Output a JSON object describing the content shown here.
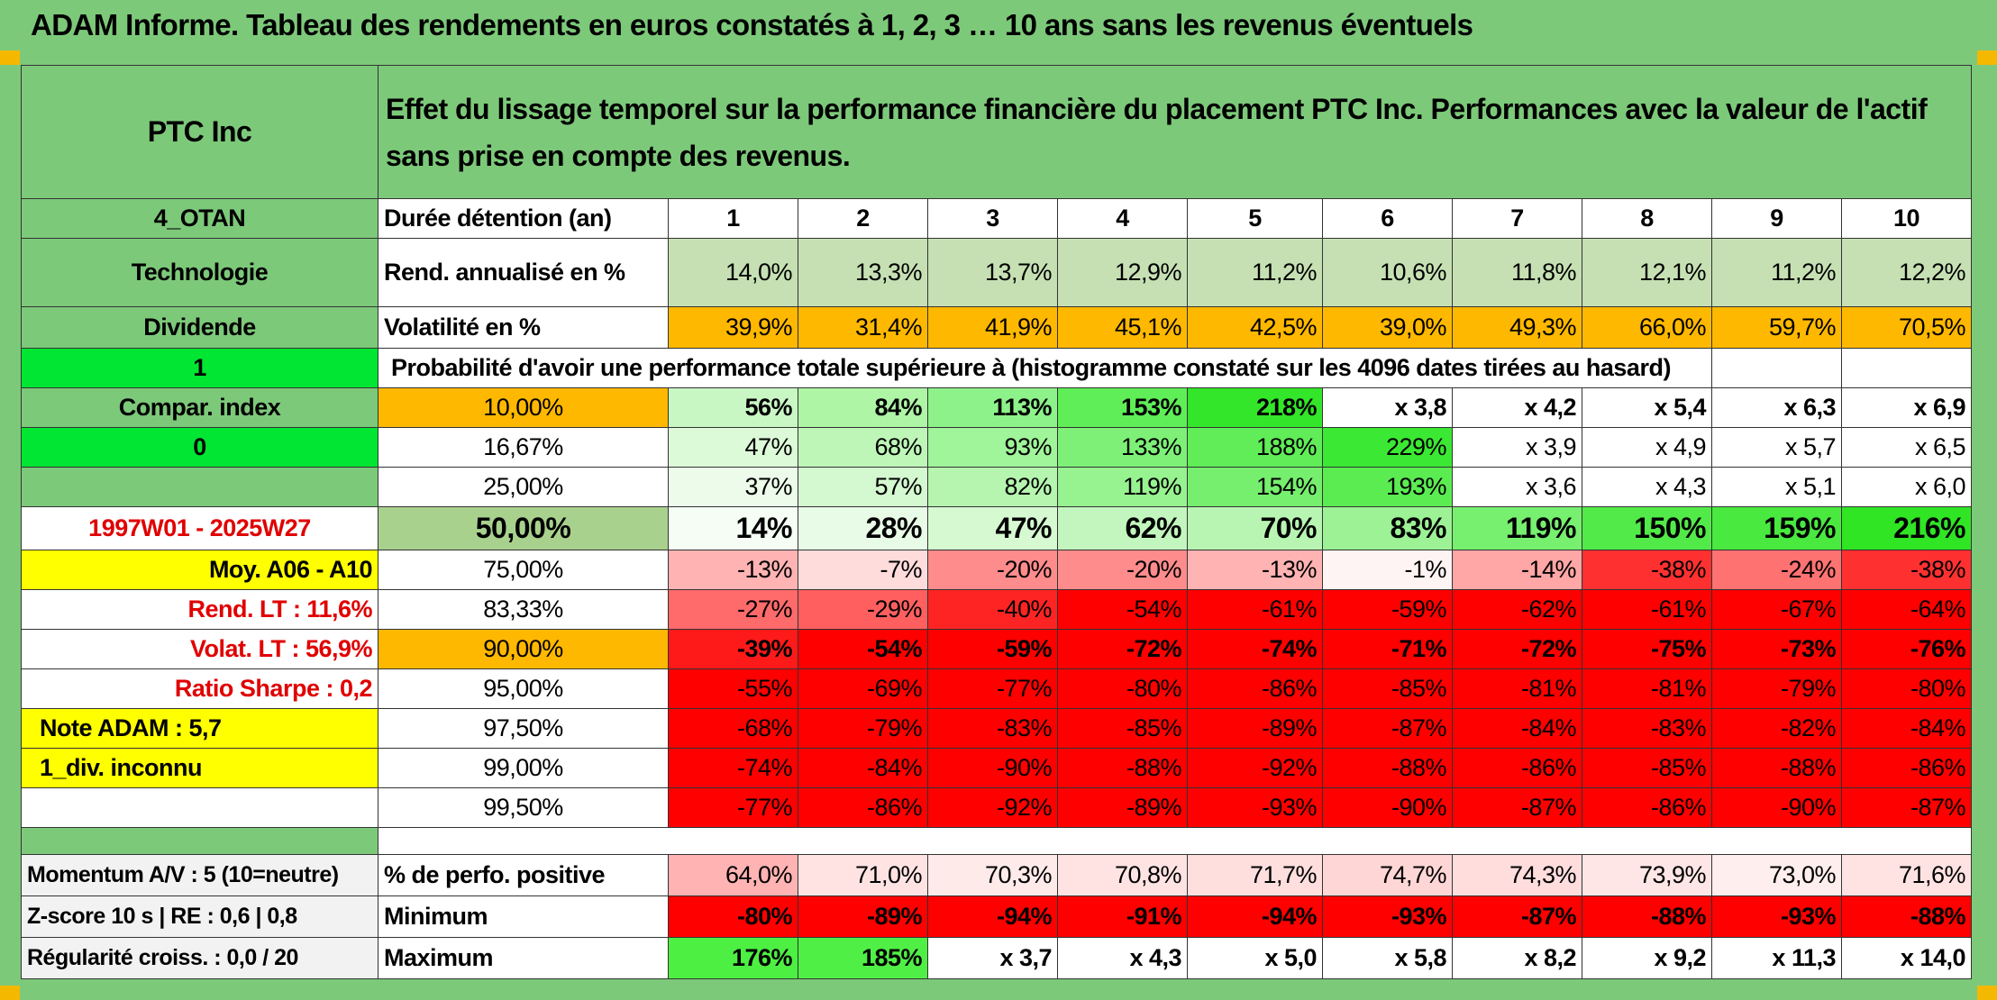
{
  "title": "ADAM Informe. Tableau des rendements en euros constatés à 1, 2, 3 … 10 ans sans les revenus éventuels",
  "colors": {
    "green_label": "#7dc97a",
    "bright_green": "#00e633",
    "yellow": "#ffff00",
    "orange": "#ffb800",
    "red": "#ff0000"
  },
  "side": {
    "name": "PTC Inc",
    "code": "4_OTAN",
    "sector": "Technologie",
    "dividend": "Dividende",
    "flag1": "1",
    "compar": "Compar. index",
    "flag0": "0",
    "period": "1997W01 - 2025W27",
    "moy": "Moy. A06 - A10",
    "rend_lt": "Rend. LT :   11,6%",
    "volat_lt": "Volat. LT :   56,9%",
    "sharpe": "Ratio Sharpe :   0,2",
    "note": "Note ADAM : 5,7",
    "div_unknown": "1_div. inconnu",
    "momentum": "Momentum A/V : 5 (10=neutre)",
    "zscore": "Z-score 10 s | RE : 0,6 | 0,8",
    "regularite": "Régularité croiss. : 0,0 / 20"
  },
  "header_text": "Effet du lissage temporel sur la performance financière du placement PTC Inc. Performances avec la valeur de l'actif sans prise en compte des revenus.",
  "rows": {
    "duree": {
      "label": "Durée détention (an)",
      "values": [
        "1",
        "2",
        "3",
        "4",
        "5",
        "6",
        "7",
        "8",
        "9",
        "10"
      ]
    },
    "rend": {
      "label": "Rend. annualisé en %",
      "values": [
        "14,0%",
        "13,3%",
        "13,7%",
        "12,9%",
        "11,2%",
        "10,6%",
        "11,8%",
        "12,1%",
        "11,2%",
        "12,2%"
      ]
    },
    "volat": {
      "label": "Volatilité en %",
      "values": [
        "39,9%",
        "31,4%",
        "41,9%",
        "45,1%",
        "42,5%",
        "39,0%",
        "49,3%",
        "66,0%",
        "59,7%",
        "70,5%"
      ]
    },
    "proba_title": "Probabilité d'avoir une performance totale supérieure à (histogramme constaté sur les 4096 dates tirées au hasard)"
  },
  "quantiles": [
    {
      "q": "10,00%",
      "values": [
        "56%",
        "84%",
        "113%",
        "153%",
        "218%",
        "x 3,8",
        "x 4,2",
        "x 5,4",
        "x 6,3",
        "x 6,9"
      ]
    },
    {
      "q": "16,67%",
      "values": [
        "47%",
        "68%",
        "93%",
        "133%",
        "188%",
        "229%",
        "x 3,9",
        "x 4,9",
        "x 5,7",
        "x 6,5"
      ]
    },
    {
      "q": "25,00%",
      "values": [
        "37%",
        "57%",
        "82%",
        "119%",
        "154%",
        "193%",
        "x 3,6",
        "x 4,3",
        "x 5,1",
        "x 6,0"
      ]
    },
    {
      "q": "50,00%",
      "values": [
        "14%",
        "28%",
        "47%",
        "62%",
        "70%",
        "83%",
        "119%",
        "150%",
        "159%",
        "216%"
      ]
    },
    {
      "q": "75,00%",
      "values": [
        "-13%",
        "-7%",
        "-20%",
        "-20%",
        "-13%",
        "-1%",
        "-14%",
        "-38%",
        "-24%",
        "-38%"
      ]
    },
    {
      "q": "83,33%",
      "values": [
        "-27%",
        "-29%",
        "-40%",
        "-54%",
        "-61%",
        "-59%",
        "-62%",
        "-61%",
        "-67%",
        "-64%"
      ]
    },
    {
      "q": "90,00%",
      "values": [
        "-39%",
        "-54%",
        "-59%",
        "-72%",
        "-74%",
        "-71%",
        "-72%",
        "-75%",
        "-73%",
        "-76%"
      ]
    },
    {
      "q": "95,00%",
      "values": [
        "-55%",
        "-69%",
        "-77%",
        "-80%",
        "-86%",
        "-85%",
        "-81%",
        "-81%",
        "-79%",
        "-80%"
      ]
    },
    {
      "q": "97,50%",
      "values": [
        "-68%",
        "-79%",
        "-83%",
        "-85%",
        "-89%",
        "-87%",
        "-84%",
        "-83%",
        "-82%",
        "-84%"
      ]
    },
    {
      "q": "99,00%",
      "values": [
        "-74%",
        "-84%",
        "-90%",
        "-88%",
        "-92%",
        "-88%",
        "-86%",
        "-85%",
        "-88%",
        "-86%"
      ]
    },
    {
      "q": "99,50%",
      "values": [
        "-77%",
        "-86%",
        "-92%",
        "-89%",
        "-93%",
        "-90%",
        "-87%",
        "-86%",
        "-90%",
        "-87%"
      ]
    }
  ],
  "bottom": {
    "positive": {
      "label": "% de perfo. positive",
      "values": [
        "64,0%",
        "71,0%",
        "70,3%",
        "70,8%",
        "71,7%",
        "74,7%",
        "74,3%",
        "73,9%",
        "73,0%",
        "71,6%"
      ]
    },
    "minimum": {
      "label": "Minimum",
      "values": [
        "-80%",
        "-89%",
        "-94%",
        "-91%",
        "-94%",
        "-93%",
        "-87%",
        "-88%",
        "-93%",
        "-88%"
      ]
    },
    "maximum": {
      "label": "Maximum",
      "values": [
        "176%",
        "185%",
        "x 3,7",
        "x 4,3",
        "x 5,0",
        "x 5,8",
        "x 8,2",
        "x 9,2",
        "x 11,3",
        "x 14,0"
      ]
    }
  }
}
